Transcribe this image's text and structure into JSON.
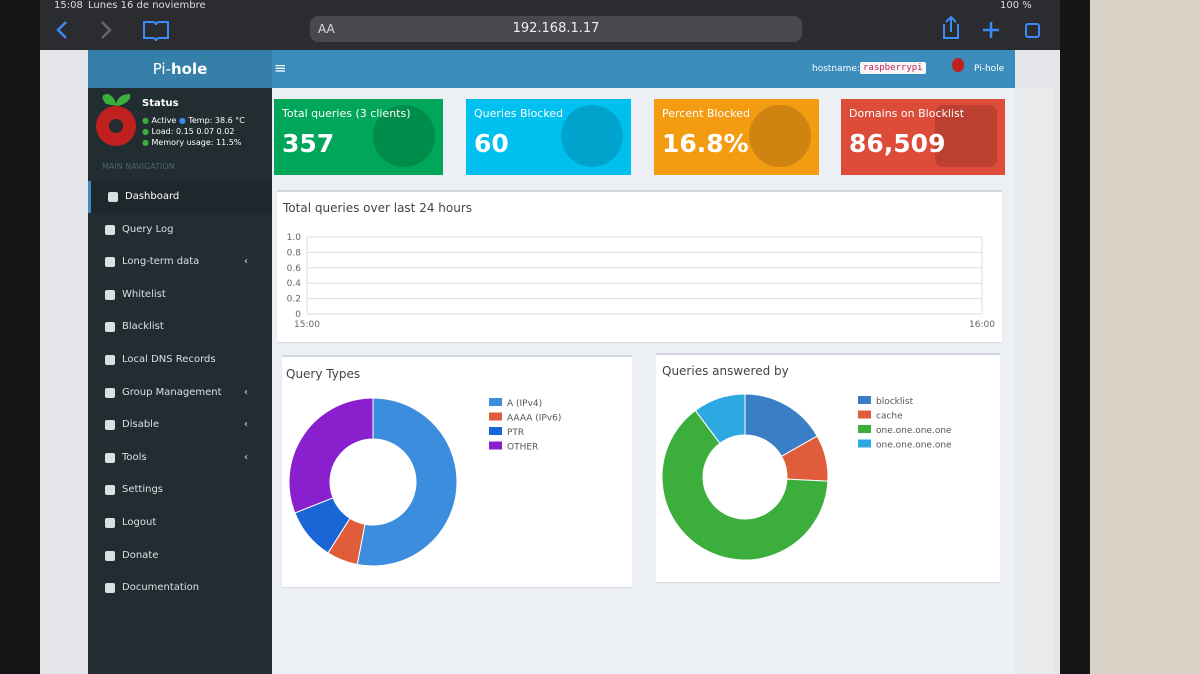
{
  "status_bar": {
    "time": "15:08",
    "date": "Lunes 16 de noviembre",
    "battery": "100 %"
  },
  "browser": {
    "text_size": "AA",
    "url": "192.168.1.17"
  },
  "sidebar": {
    "brand_prefix": "Pi-",
    "brand": "hole",
    "status_title": "Status",
    "status_active": "Active",
    "status_temp": "Temp: 38.6 °C",
    "status_load": "Load:  0.15  0.07  0.02",
    "status_memory": "Memory usage:  11.5%",
    "section": "MAIN NAVIGATION",
    "menu": [
      "Dashboard",
      "Query Log",
      "Long-term data",
      "Whitelist",
      "Blacklist",
      "Local DNS Records",
      "Group Management",
      "Disable",
      "Tools",
      "Settings",
      "Logout",
      "Donate",
      "Documentation"
    ]
  },
  "header": {
    "hostname_label": "hostname:",
    "hostname": "raspberrypi",
    "user": "Pi-hole"
  },
  "stats": [
    {
      "label": "Total queries (3 clients)",
      "value": "357",
      "color": "#00a65a"
    },
    {
      "label": "Queries Blocked",
      "value": "60",
      "color": "#00c0ef"
    },
    {
      "label": "Percent Blocked",
      "value": "16.8%",
      "color": "#f39c12"
    },
    {
      "label": "Domains on Blocklist",
      "value": "86,509",
      "color": "#dd4b39"
    }
  ],
  "queries_chart": {
    "title": "Total queries over last 24 hours",
    "ylim": [
      0,
      1
    ],
    "yticks": [
      0,
      0.2,
      0.4,
      0.6,
      0.8,
      {
        "value": 1,
        "label": "1.0"
      }
    ],
    "xticks": [
      "15:00",
      "16:00"
    ]
  },
  "query_types": {
    "type": "pie",
    "title": "Query Types",
    "series": [
      {
        "name": "A (IPv4)",
        "color": "#3c8dde",
        "values": [
          53
        ]
      },
      {
        "name": "AAAA (IPv6)",
        "color": "#e05d3c",
        "values": [
          6
        ]
      },
      {
        "name": "PTR",
        "color": "#1a66d6",
        "values": [
          10
        ]
      },
      {
        "name": "OTHER",
        "color": "#8a1fce",
        "values": [
          31
        ]
      }
    ]
  },
  "answered_by": {
    "type": "pie",
    "title": "Queries answered by",
    "series": [
      {
        "name": "blocklist",
        "color": "#3a7fc6",
        "values": [
          16.8
        ]
      },
      {
        "name": "cache",
        "color": "#e05d3c",
        "values": [
          9
        ]
      },
      {
        "name": "one.one.one.one",
        "color": "#3cae3c",
        "values": [
          64
        ]
      },
      {
        "name": "one.one.one.one",
        "color": "#2ea8e0",
        "values": [
          10.2
        ]
      }
    ]
  }
}
